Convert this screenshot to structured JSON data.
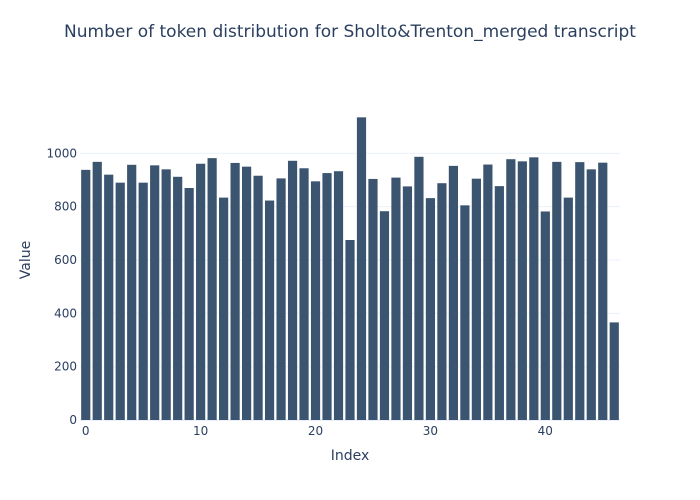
{
  "chart_data": {
    "type": "bar",
    "title": "Number of token distribution for Sholto&Trenton_merged transcript",
    "xlabel": "Index",
    "ylabel": "Value",
    "x": [
      0,
      1,
      2,
      3,
      4,
      5,
      6,
      7,
      8,
      9,
      10,
      11,
      12,
      13,
      14,
      15,
      16,
      17,
      18,
      19,
      20,
      21,
      22,
      23,
      24,
      25,
      26,
      27,
      28,
      29,
      30,
      31,
      32,
      33,
      34,
      35,
      36,
      37,
      38,
      39,
      40,
      41,
      42,
      43,
      44,
      45,
      46
    ],
    "values": [
      938,
      968,
      920,
      890,
      957,
      890,
      955,
      940,
      912,
      870,
      961,
      982,
      834,
      964,
      950,
      916,
      823,
      906,
      972,
      944,
      895,
      926,
      933,
      675,
      1135,
      904,
      783,
      909,
      876,
      987,
      832,
      888,
      953,
      805,
      905,
      958,
      877,
      978,
      970,
      985,
      782,
      968,
      834,
      967,
      940,
      965,
      366
    ],
    "xlim": [
      -0.5,
      46.5
    ],
    "ylim": [
      0,
      1200
    ],
    "xticks": [
      "0",
      "10",
      "20",
      "30",
      "40"
    ],
    "yticks": [
      "0",
      "200",
      "400",
      "600",
      "800",
      "1000"
    ],
    "bar_color": "#3b5570",
    "grid": true,
    "legend": "none"
  }
}
